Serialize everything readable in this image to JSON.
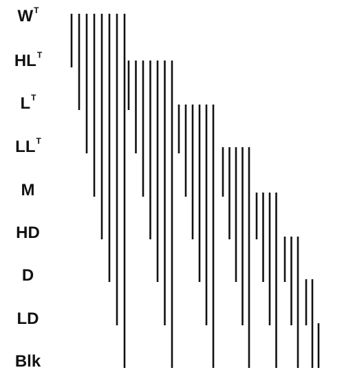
{
  "diagram": {
    "levels": [
      {
        "base": "W",
        "sup": "T"
      },
      {
        "base": "HL",
        "sup": "T"
      },
      {
        "base": "L",
        "sup": "T"
      },
      {
        "base": "LL",
        "sup": "T"
      },
      {
        "base": "M",
        "sup": ""
      },
      {
        "base": "HD",
        "sup": ""
      },
      {
        "base": "D",
        "sup": ""
      },
      {
        "base": "LD",
        "sup": ""
      },
      {
        "base": "Blk",
        "sup": ""
      }
    ],
    "groups": [
      {
        "start_level": 1,
        "end_levels": [
          2,
          3,
          4,
          5,
          6,
          7,
          8,
          9
        ]
      },
      {
        "start_level": 2,
        "end_levels": [
          3,
          4,
          5,
          6,
          7,
          8,
          9
        ]
      },
      {
        "start_level": 3,
        "end_levels": [
          4,
          5,
          6,
          7,
          8,
          9
        ]
      },
      {
        "start_level": 4,
        "end_levels": [
          5,
          6,
          7,
          8,
          9
        ]
      },
      {
        "start_level": 5,
        "end_levels": [
          6,
          7,
          8,
          9
        ]
      },
      {
        "start_level": 6,
        "end_levels": [
          7,
          8,
          9
        ]
      },
      {
        "start_level": 7,
        "end_levels": [
          8,
          9
        ]
      },
      {
        "start_level": 8,
        "end_levels": [
          9
        ]
      }
    ],
    "line_color": "#111111",
    "label_color": "#111111"
  }
}
